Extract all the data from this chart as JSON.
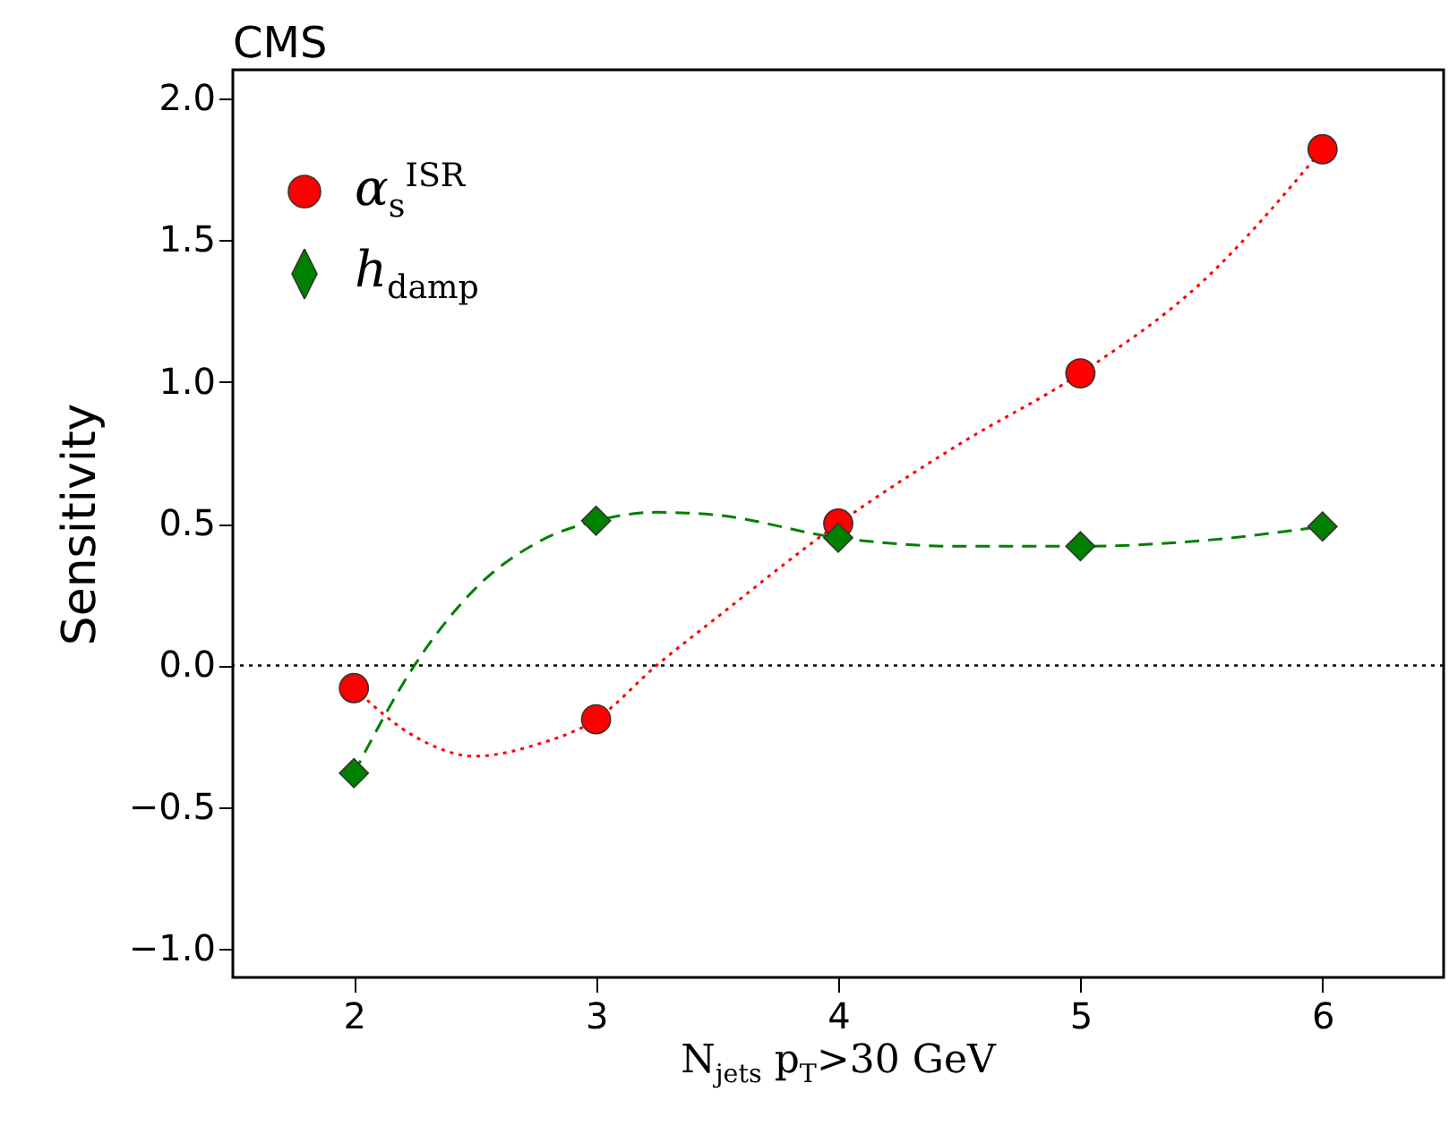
{
  "chart_data": {
    "type": "scatter",
    "title": "CMS",
    "xlabel": "N$_{jets}$ p$_{T}$>30 GeV",
    "ylabel": "Sensitivity",
    "xlim": [
      1.5,
      6.5
    ],
    "xticks": [
      2,
      3,
      4,
      5,
      6
    ],
    "ylim": [
      -1.1,
      2.1
    ],
    "yticks": [
      {
        "value": -1,
        "label": "−1.0"
      },
      {
        "value": -0.5,
        "label": "−0.5"
      },
      {
        "value": 0,
        "label": "0.0"
      },
      {
        "value": 0.5,
        "label": "0.5"
      },
      {
        "value": 1,
        "label": "1.0"
      },
      {
        "value": 1.5,
        "label": "1.5"
      },
      {
        "value": 2,
        "label": "2.0"
      }
    ],
    "grid": false,
    "legend": "top left",
    "ref_lines": [
      {
        "axis": "y",
        "value": 0,
        "color": "#000000",
        "line_style": "dotted"
      }
    ],
    "series": [
      {
        "type": "line",
        "color": "#ff0000",
        "line_style": "dotted",
        "x": [
          2,
          2.25,
          2.5,
          2.75,
          3,
          3.25,
          3.5,
          4,
          4.5,
          5,
          5.5,
          6
        ],
        "values": [
          -0.08,
          -0.25,
          -0.32,
          -0.28,
          -0.19,
          0.0,
          0.17,
          0.5,
          0.78,
          1.03,
          1.35,
          1.82
        ]
      },
      {
        "type": "line",
        "color": "#008000",
        "line_style": "dashed",
        "x": [
          2,
          2.25,
          2.5,
          2.75,
          3,
          3.25,
          3.5,
          4,
          4.5,
          5,
          5.5,
          6
        ],
        "values": [
          -0.38,
          0.0,
          0.27,
          0.43,
          0.51,
          0.54,
          0.53,
          0.45,
          0.42,
          0.42,
          0.44,
          0.49
        ]
      },
      {
        "name": "α$_{s}$$^{ISR}$",
        "color": "#ff0000",
        "marker": "circle",
        "x": [
          2,
          3,
          4,
          5,
          6
        ],
        "values": [
          -0.08,
          -0.19,
          0.5,
          1.03,
          1.82
        ]
      },
      {
        "name": "h$_{damp}$",
        "color": "#008000",
        "marker": "diamond",
        "x": [
          2,
          3,
          4,
          5,
          6
        ],
        "values": [
          -0.38,
          0.51,
          0.45,
          0.42,
          0.49
        ]
      }
    ]
  }
}
